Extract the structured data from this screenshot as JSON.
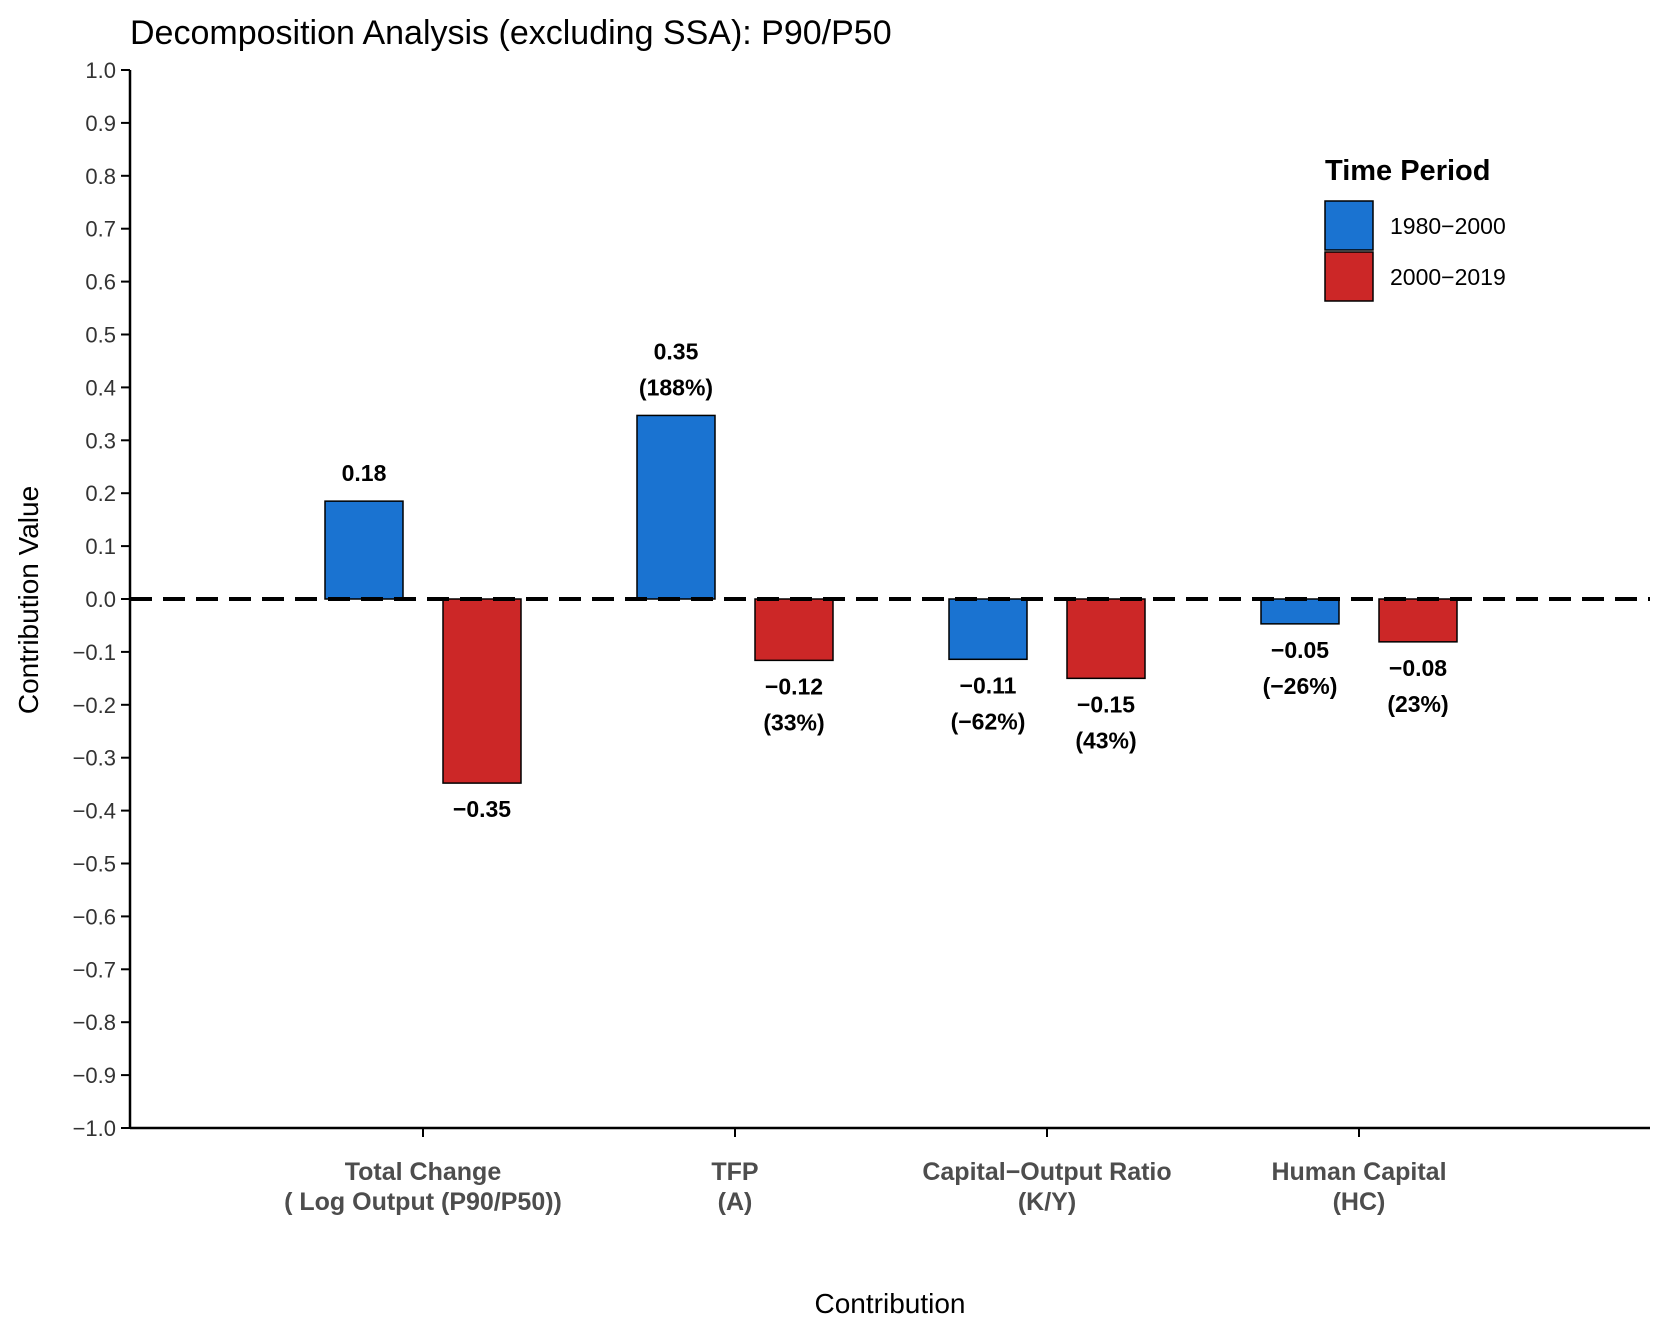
{
  "chart_data": {
    "type": "bar",
    "title": "Decomposition Analysis (excluding SSA): P90/P50",
    "xlabel": "Contribution",
    "ylabel": "Contribution Value",
    "ylim": [
      -1.0,
      1.0
    ],
    "yticks": [
      "1.0",
      "0.9",
      "0.8",
      "0.7",
      "0.6",
      "0.5",
      "0.4",
      "0.3",
      "0.2",
      "0.1",
      "0.0",
      "−0.1",
      "−0.2",
      "−0.3",
      "−0.4",
      "−0.5",
      "−0.6",
      "−0.7",
      "−0.8",
      "−0.9",
      "−1.0"
    ],
    "ytick_values": [
      1.0,
      0.9,
      0.8,
      0.7,
      0.6,
      0.5,
      0.4,
      0.3,
      0.2,
      0.1,
      0.0,
      -0.1,
      -0.2,
      -0.3,
      -0.4,
      -0.5,
      -0.6,
      -0.7,
      -0.8,
      -0.9,
      -1.0
    ],
    "categories": [
      [
        "Total Change",
        "( Log Output (P90/P50))"
      ],
      [
        "TFP",
        "(A)"
      ],
      [
        "Capital−Output Ratio",
        "(K/Y)"
      ],
      [
        "Human Capital",
        "(HC)"
      ]
    ],
    "reference_line": 0.0,
    "legend": {
      "title": "Time Period",
      "position": "top-right"
    },
    "series": [
      {
        "name": "1980−2000",
        "color": "#1a73d1",
        "values": [
          0.185,
          0.347,
          -0.114,
          -0.047
        ],
        "labels": [
          [
            "0.18"
          ],
          [
            "0.35",
            "(188%)"
          ],
          [
            "−0.11",
            "(−62%)"
          ],
          [
            "−0.05",
            "(−26%)"
          ]
        ]
      },
      {
        "name": "2000−2019",
        "color": "#cc2727",
        "values": [
          -0.348,
          -0.116,
          -0.15,
          -0.081
        ],
        "labels": [
          [
            "−0.35"
          ],
          [
            "−0.12",
            "(33%)"
          ],
          [
            "−0.15",
            "(43%)"
          ],
          [
            "−0.08",
            "(23%)"
          ]
        ]
      }
    ]
  }
}
